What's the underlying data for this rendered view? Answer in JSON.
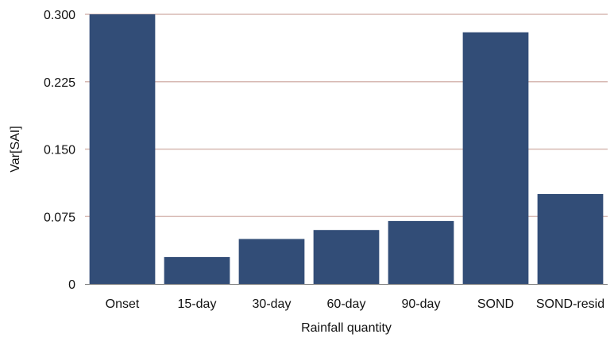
{
  "chart_data": {
    "type": "bar",
    "categories": [
      "Onset",
      "15-day",
      "30-day",
      "60-day",
      "90-day",
      "SOND",
      "SOND-resid"
    ],
    "values": [
      0.3,
      0.03,
      0.05,
      0.06,
      0.07,
      0.28,
      0.1
    ],
    "xlabel": "Rainfall quantity",
    "ylabel": "Var[SAI]",
    "ylim": [
      0,
      0.3
    ],
    "yticks": [
      "0",
      "0.075",
      "0.150",
      "0.225",
      "0.300"
    ],
    "grid": true,
    "legend": "none",
    "colors": {
      "bar": "#324D77",
      "grid": "#D7B9B3",
      "axis": "#7A7A7A"
    }
  }
}
